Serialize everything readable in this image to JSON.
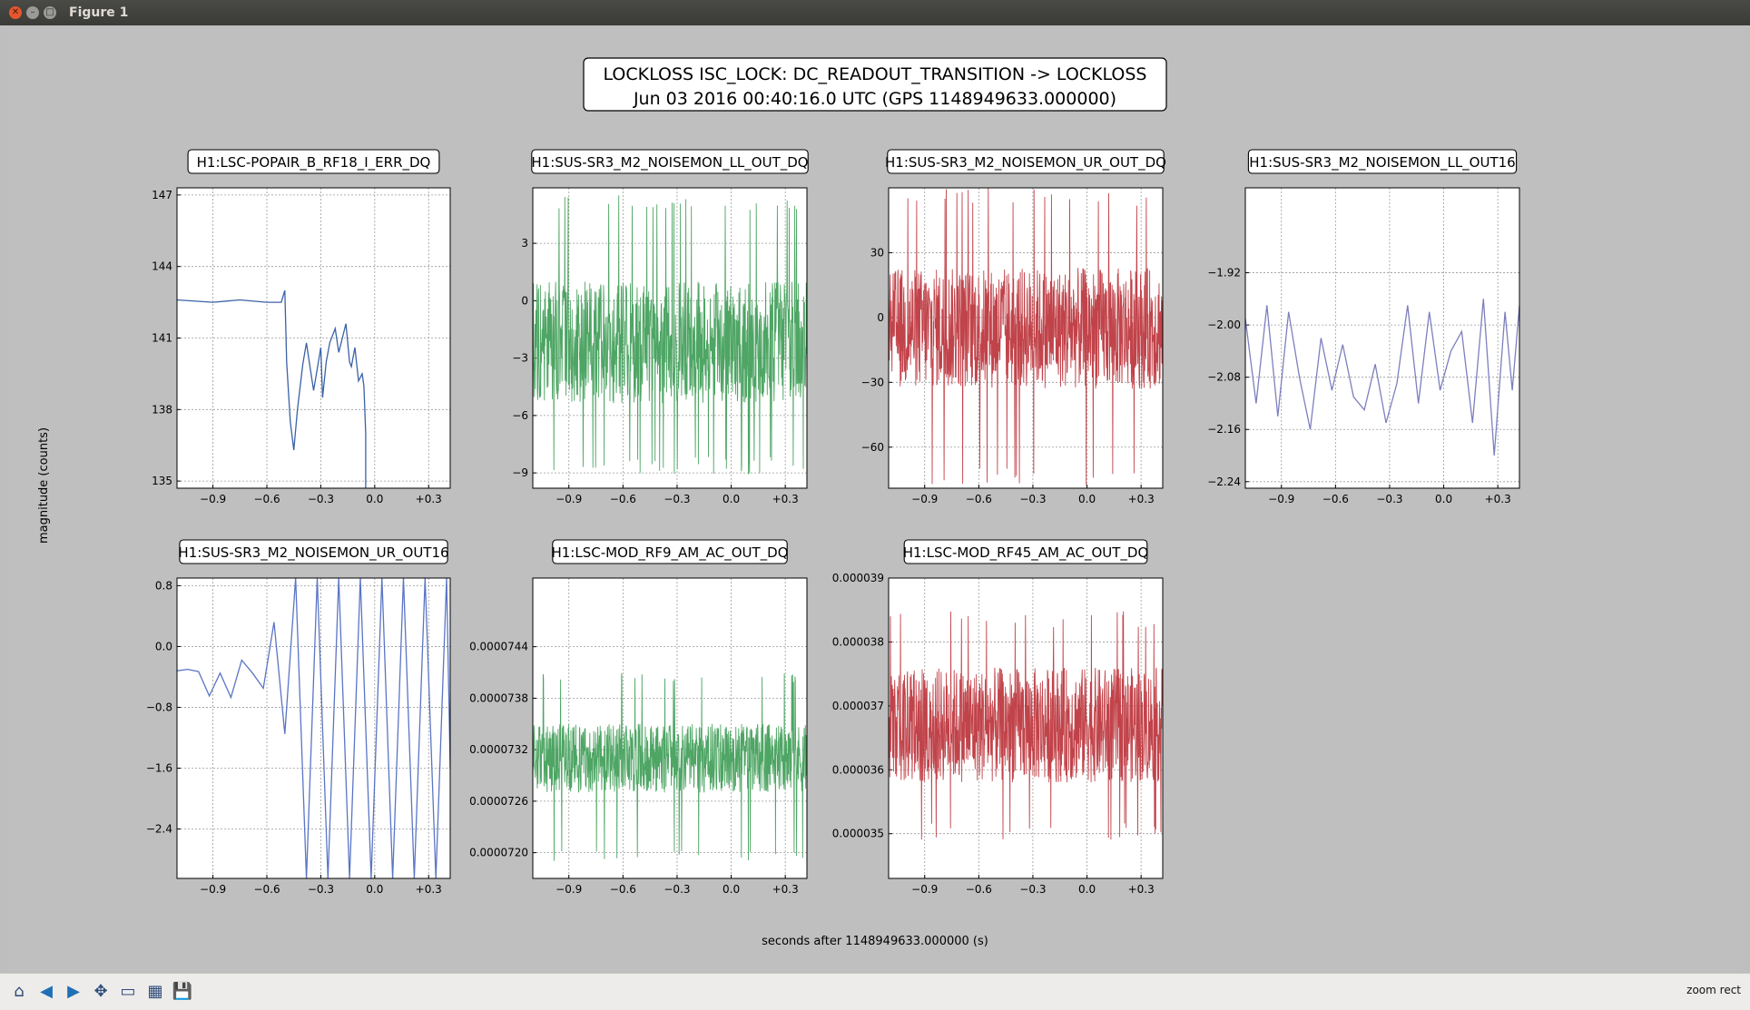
{
  "window": {
    "title": "Figure 1"
  },
  "toolbar": {
    "buttons": [
      {
        "name": "home-button",
        "icon": "home-icon",
        "glyph": "⌂"
      },
      {
        "name": "back-button",
        "icon": "arrow-left-icon",
        "glyph": "◀"
      },
      {
        "name": "forward-button",
        "icon": "arrow-right-icon",
        "glyph": "▶"
      },
      {
        "name": "pan-button",
        "icon": "move-icon",
        "glyph": "✥"
      },
      {
        "name": "zoom-button",
        "icon": "zoom-rect-icon",
        "glyph": "▭"
      },
      {
        "name": "subplots-button",
        "icon": "configure-icon",
        "glyph": "▦"
      },
      {
        "name": "save-button",
        "icon": "save-icon",
        "glyph": "💾"
      }
    ],
    "status": "zoom rect"
  },
  "figure": {
    "title_line1": "LOCKLOSS ISC_LOCK: DC_READOUT_TRANSITION -> LOCKLOSS",
    "title_line2": "Jun 03 2016 00:40:16.0 UTC (GPS 1148949633.000000)",
    "ylabel": "magnitude (counts)",
    "xlabel": "seconds after 1148949633.000000 (s)"
  },
  "chart_data": [
    {
      "type": "line",
      "title": "H1:LSC-POPAIR_B_RF18_I_ERR_DQ",
      "color": "#3a62a7",
      "xlim": [
        -1.1,
        0.42
      ],
      "ylim": [
        134.7,
        147.3
      ],
      "xticks": [
        -0.9,
        -0.6,
        -0.3,
        0.0,
        0.3
      ],
      "xticklabels": [
        "−0.9",
        "−0.6",
        "−0.3",
        "0.0",
        "+0.3"
      ],
      "yticks": [
        135,
        138,
        141,
        144,
        147
      ],
      "yticklabels": [
        "135",
        "138",
        "141",
        "144",
        "147"
      ],
      "series": [
        {
          "x": [
            -1.1,
            -0.9,
            -0.75,
            -0.6,
            -0.52,
            -0.5,
            -0.49,
            -0.47,
            -0.45,
            -0.43,
            -0.4,
            -0.38,
            -0.36,
            -0.34,
            -0.32,
            -0.3,
            -0.29,
            -0.27,
            -0.25,
            -0.22,
            -0.2,
            -0.18,
            -0.16,
            -0.14,
            -0.13,
            -0.11,
            -0.09,
            -0.07,
            -0.06,
            -0.05,
            -0.05
          ],
          "y": [
            142.6,
            142.5,
            142.6,
            142.5,
            142.5,
            143.0,
            140.0,
            137.5,
            136.3,
            138.0,
            139.9,
            140.8,
            139.8,
            138.8,
            139.7,
            140.6,
            138.5,
            140.0,
            140.8,
            141.4,
            140.4,
            141.0,
            141.6,
            140.0,
            139.8,
            140.6,
            139.2,
            139.5,
            139.0,
            137.0,
            134.7
          ]
        }
      ]
    },
    {
      "type": "line",
      "title": "H1:SUS-SR3_M2_NOISEMON_LL_OUT_DQ",
      "color": "#4ea564",
      "xlim": [
        -1.1,
        0.42
      ],
      "ylim": [
        -9.8,
        5.9
      ],
      "xticks": [
        -0.9,
        -0.6,
        -0.3,
        0.0,
        0.3
      ],
      "xticklabels": [
        "−0.9",
        "−0.6",
        "−0.3",
        "0.0",
        "+0.3"
      ],
      "yticks": [
        -9,
        -6,
        -3,
        0,
        3
      ],
      "yticklabels": [
        "−9",
        "−6",
        "−3",
        "0",
        "3"
      ],
      "noise": {
        "mean": -2.2,
        "amp": 3.2,
        "spike_lo": -9.1,
        "spike_hi": 5.6
      }
    },
    {
      "type": "line",
      "title": "H1:SUS-SR3_M2_NOISEMON_UR_OUT_DQ",
      "color": "#c1434a",
      "xlim": [
        -1.1,
        0.42
      ],
      "ylim": [
        -79,
        60
      ],
      "xticks": [
        -0.9,
        -0.6,
        -0.3,
        0.0,
        0.3
      ],
      "xticklabels": [
        "−0.9",
        "−0.6",
        "−0.3",
        "0.0",
        "+0.3"
      ],
      "yticks": [
        -60,
        -30,
        0,
        30
      ],
      "yticklabels": [
        "−60",
        "−30",
        "0",
        "30"
      ],
      "noise": {
        "mean": -5,
        "amp": 28,
        "spike_lo": -78,
        "spike_hi": 60
      }
    },
    {
      "type": "line",
      "title": "H1:SUS-SR3_M2_NOISEMON_LL_OUT16",
      "color": "#7d7fbe",
      "xlim": [
        -1.1,
        0.42
      ],
      "ylim": [
        -2.25,
        -1.79
      ],
      "xticks": [
        -0.9,
        -0.6,
        -0.3,
        0.0,
        0.3
      ],
      "xticklabels": [
        "−0.9",
        "−0.6",
        "−0.3",
        "0.0",
        "+0.3"
      ],
      "yticks": [
        -2.24,
        -2.16,
        -2.08,
        -2.0,
        -1.92
      ],
      "yticklabels": [
        "−2.24",
        "−2.16",
        "−2.08",
        "−2.00",
        "−1.92"
      ],
      "series": [
        {
          "x": [
            -1.1,
            -1.04,
            -0.98,
            -0.92,
            -0.86,
            -0.8,
            -0.74,
            -0.68,
            -0.62,
            -0.56,
            -0.5,
            -0.44,
            -0.38,
            -0.32,
            -0.26,
            -0.2,
            -0.14,
            -0.08,
            -0.02,
            0.04,
            0.1,
            0.16,
            0.22,
            0.28,
            0.34,
            0.38,
            0.42
          ],
          "y": [
            -1.99,
            -2.12,
            -1.97,
            -2.14,
            -1.98,
            -2.08,
            -2.16,
            -2.02,
            -2.1,
            -2.03,
            -2.11,
            -2.13,
            -2.06,
            -2.15,
            -2.09,
            -1.97,
            -2.12,
            -1.98,
            -2.1,
            -2.04,
            -2.01,
            -2.15,
            -1.96,
            -2.2,
            -1.98,
            -2.1,
            -1.97
          ]
        }
      ]
    },
    {
      "type": "line",
      "title": "H1:SUS-SR3_M2_NOISEMON_UR_OUT16",
      "color": "#5a75c4",
      "xlim": [
        -1.1,
        0.42
      ],
      "ylim": [
        -3.05,
        0.9
      ],
      "xticks": [
        -0.9,
        -0.6,
        -0.3,
        0.0,
        0.3
      ],
      "xticklabels": [
        "−0.9",
        "−0.6",
        "−0.3",
        "0.0",
        "+0.3"
      ],
      "yticks": [
        -2.4,
        -1.6,
        -0.8,
        0.0,
        0.8
      ],
      "yticklabels": [
        "−2.4",
        "−1.6",
        "−0.8",
        "0.0",
        "0.8"
      ],
      "series": [
        {
          "x": [
            -1.1,
            -1.04,
            -0.98,
            -0.92,
            -0.86,
            -0.8,
            -0.74,
            -0.68,
            -0.62,
            -0.56,
            -0.5,
            -0.44,
            -0.38,
            -0.32,
            -0.26,
            -0.2,
            -0.14,
            -0.08,
            -0.02,
            0.04,
            0.1,
            0.16,
            0.22,
            0.28,
            0.34,
            0.4,
            0.42
          ],
          "y": [
            -0.32,
            -0.3,
            -0.33,
            -0.65,
            -0.35,
            -0.67,
            -0.18,
            -0.35,
            -0.55,
            0.32,
            -1.15,
            0.9,
            -3.05,
            0.9,
            -3.05,
            0.9,
            -3.05,
            0.9,
            -3.05,
            0.9,
            -3.05,
            0.9,
            -3.05,
            0.9,
            -3.05,
            0.9,
            -1.6
          ]
        }
      ]
    },
    {
      "type": "line",
      "title": "H1:LSC-MOD_RF9_AM_AC_OUT_DQ",
      "color": "#4ea564",
      "xlim": [
        -1.1,
        0.42
      ],
      "ylim": [
        7.17e-05,
        7.52e-05
      ],
      "xticks": [
        -0.9,
        -0.6,
        -0.3,
        0.0,
        0.3
      ],
      "xticklabels": [
        "−0.9",
        "−0.6",
        "−0.3",
        "0.0",
        "+0.3"
      ],
      "yticks": [
        7.2e-05,
        7.26e-05,
        7.32e-05,
        7.38e-05,
        7.44e-05
      ],
      "yticklabels": [
        "0.0000720",
        "0.0000726",
        "0.0000732",
        "0.0000738",
        "0.0000744"
      ],
      "noise": {
        "mean": 7.31e-05,
        "amp": 4e-07,
        "spike_lo": 7.19e-05,
        "spike_hi": 7.41e-05
      }
    },
    {
      "type": "line",
      "title": "H1:LSC-MOD_RF45_AM_AC_OUT_DQ",
      "color": "#c1434a",
      "xlim": [
        -1.1,
        0.42
      ],
      "ylim": [
        3.43e-05,
        3.9e-05
      ],
      "xticks": [
        -0.9,
        -0.6,
        -0.3,
        0.0,
        0.3
      ],
      "xticklabels": [
        "−0.9",
        "−0.6",
        "−0.3",
        "0.0",
        "+0.3"
      ],
      "yticks": [
        3.5e-05,
        3.6e-05,
        3.7e-05,
        3.8e-05,
        3.9e-05
      ],
      "yticklabels": [
        "0.000035",
        "0.000036",
        "0.000037",
        "0.000038",
        "0.000039"
      ],
      "noise": {
        "mean": 3.67e-05,
        "amp": 9e-07,
        "spike_lo": 3.49e-05,
        "spike_hi": 3.85e-05
      }
    }
  ]
}
